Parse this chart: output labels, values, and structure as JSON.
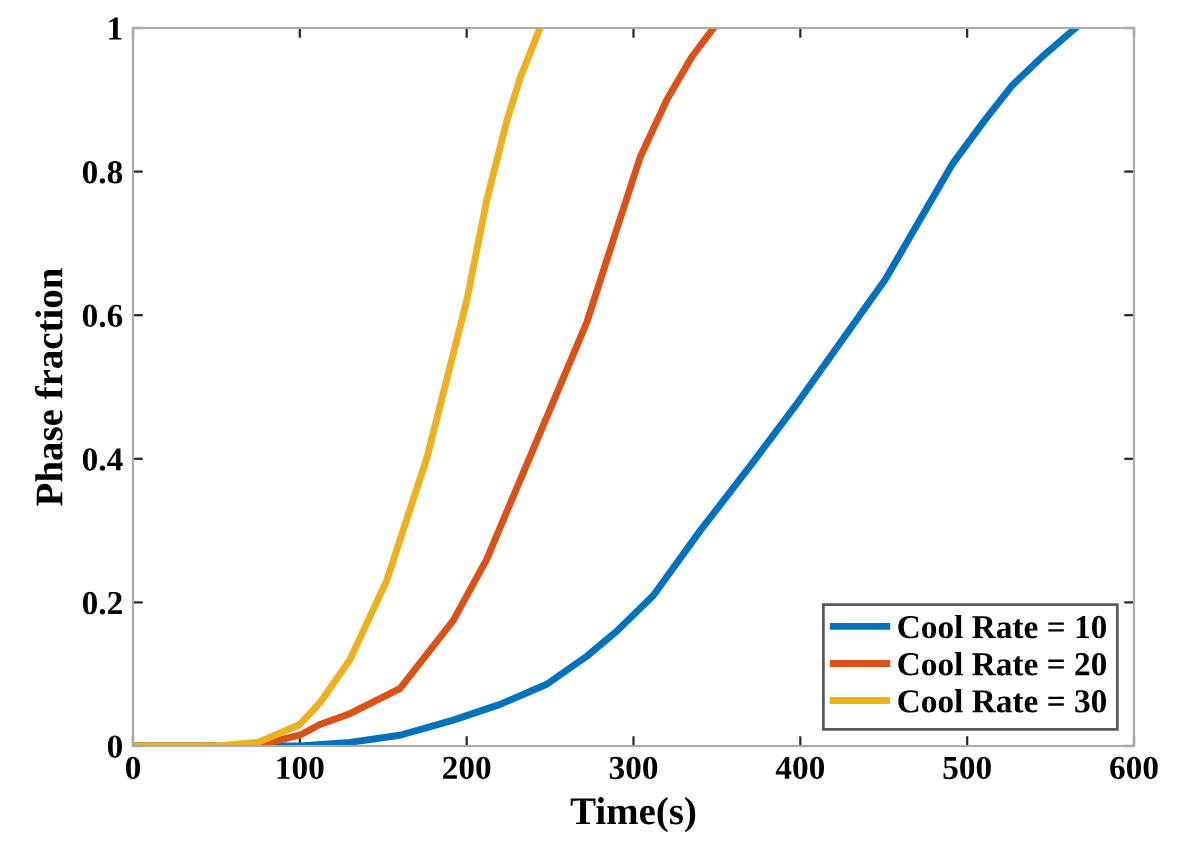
{
  "chart_data": {
    "type": "line",
    "xlabel": "Time(s)",
    "ylabel": "Phase fraction",
    "xlim": [
      0,
      600
    ],
    "ylim": [
      0,
      1
    ],
    "xticks": [
      0,
      100,
      200,
      300,
      400,
      500,
      600
    ],
    "yticks": [
      0,
      0.2,
      0.4,
      0.6,
      0.8,
      1
    ],
    "grid": false,
    "legend": "bottom right",
    "marker": "none",
    "line_style": "solid",
    "series": [
      {
        "name": "Cool Rate = 10",
        "color": "#0072bd",
        "x": [
          0,
          100,
          130,
          160,
          192,
          220,
          248,
          272,
          290,
          312,
          340,
          370,
          399,
          425,
          451,
          471,
          491,
          510,
          527,
          545,
          565
        ],
        "values": [
          0,
          0,
          0.005,
          0.015,
          0.036,
          0.058,
          0.086,
          0.125,
          0.16,
          0.21,
          0.3,
          0.39,
          0.48,
          0.565,
          0.65,
          0.73,
          0.81,
          0.87,
          0.92,
          0.96,
          1
        ]
      },
      {
        "name": "Cool Rate = 20",
        "color": "#d95319",
        "x": [
          0,
          60,
          80,
          100,
          112,
          130,
          160,
          192,
          212,
          232,
          252,
          272,
          290,
          304,
          320,
          335,
          348
        ],
        "values": [
          0,
          0,
          0.004,
          0.015,
          0.03,
          0.045,
          0.08,
          0.175,
          0.26,
          0.37,
          0.48,
          0.59,
          0.72,
          0.82,
          0.9,
          0.96,
          1
        ]
      },
      {
        "name": "Cool Rate = 30",
        "color": "#edb120",
        "x": [
          0,
          50,
          75,
          100,
          112,
          130,
          152,
          176,
          200,
          212,
          224,
          232,
          244
        ],
        "values": [
          0,
          0,
          0.005,
          0.03,
          0.06,
          0.12,
          0.23,
          0.4,
          0.62,
          0.76,
          0.87,
          0.93,
          1
        ]
      }
    ]
  }
}
